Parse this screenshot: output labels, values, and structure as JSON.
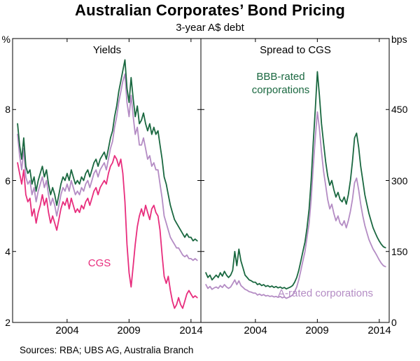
{
  "chart_data": {
    "type": "line",
    "title": "Australian Corporates’ Bond Pricing",
    "subtitle": "3-year A$ debt",
    "sources": "Sources:  RBA; UBS AG, Australia Branch",
    "x_min": 1999.6,
    "x_max": 2014.8,
    "x_start": 2000.0,
    "x_step": 0.16667,
    "x_tick_values": [
      2004,
      2009,
      2014
    ],
    "x_tick_labels": [
      "2004",
      "2009",
      "2014"
    ],
    "frame_color": "#000000",
    "panels": [
      {
        "title": "Yields",
        "unit": "%",
        "y_min": 2,
        "y_max": 10,
        "y_ticks": [
          2,
          4,
          6,
          8
        ],
        "series": [
          {
            "name": "A-rated corporations",
            "color": "#b48cc4",
            "values": [
              7.3,
              6.7,
              6.3,
              6.9,
              6.1,
              5.9,
              6.0,
              5.6,
              5.8,
              5.4,
              5.7,
              5.9,
              6.1,
              5.8,
              6.0,
              5.6,
              5.3,
              5.5,
              5.3,
              5.0,
              5.3,
              5.6,
              5.8,
              5.7,
              5.9,
              5.7,
              6.0,
              5.8,
              5.6,
              5.7,
              5.6,
              5.8,
              5.7,
              5.9,
              6.0,
              5.8,
              6.0,
              6.2,
              6.3,
              6.1,
              6.3,
              6.4,
              6.5,
              6.3,
              6.6,
              6.9,
              7.1,
              7.5,
              7.8,
              8.2,
              8.5,
              8.8,
              9.0,
              8.2,
              7.8,
              8.4,
              7.8,
              7.3,
              7.5,
              7.0,
              7.0,
              7.2,
              6.9,
              6.6,
              6.7,
              6.4,
              6.5,
              6.3,
              6.3,
              5.9,
              5.5,
              5.0,
              4.8,
              4.6,
              4.4,
              4.3,
              4.2,
              4.1,
              4.1,
              4.0,
              3.9,
              3.85,
              3.9,
              3.8,
              3.8,
              3.75,
              3.8,
              3.75
            ]
          },
          {
            "name": "BBB-rated corporations",
            "color": "#1a6840",
            "values": [
              7.6,
              7.0,
              6.6,
              7.2,
              6.4,
              6.2,
              6.3,
              5.9,
              6.1,
              5.7,
              6.0,
              6.2,
              6.4,
              6.1,
              6.3,
              5.9,
              5.6,
              5.8,
              5.6,
              5.3,
              5.6,
              5.9,
              6.1,
              6.0,
              6.2,
              6.0,
              6.3,
              6.1,
              5.9,
              6.0,
              5.9,
              6.1,
              6.0,
              6.2,
              6.3,
              6.1,
              6.3,
              6.5,
              6.6,
              6.4,
              6.6,
              6.7,
              6.8,
              6.6,
              6.9,
              7.2,
              7.4,
              7.8,
              8.1,
              8.5,
              8.8,
              9.1,
              9.4,
              8.6,
              8.2,
              8.9,
              8.3,
              7.8,
              8.1,
              7.6,
              7.7,
              7.9,
              7.6,
              7.4,
              7.6,
              7.3,
              7.5,
              7.3,
              7.4,
              7.0,
              6.6,
              6.1,
              5.9,
              5.6,
              5.3,
              5.1,
              4.9,
              4.8,
              4.7,
              4.6,
              4.5,
              4.4,
              4.5,
              4.4,
              4.4,
              4.3,
              4.35,
              4.3
            ]
          },
          {
            "name": "CGS",
            "color": "#e82d7d",
            "values": [
              6.5,
              6.2,
              5.9,
              6.3,
              5.6,
              5.4,
              5.5,
              5.0,
              5.2,
              4.8,
              5.1,
              5.3,
              5.6,
              5.3,
              5.5,
              5.1,
              4.8,
              5.0,
              4.8,
              4.6,
              4.9,
              5.2,
              5.4,
              5.3,
              5.5,
              5.2,
              5.5,
              5.3,
              5.1,
              5.2,
              5.1,
              5.3,
              5.2,
              5.4,
              5.5,
              5.3,
              5.5,
              5.7,
              5.8,
              5.6,
              5.8,
              5.9,
              6.0,
              5.9,
              6.2,
              6.4,
              6.5,
              6.7,
              6.6,
              6.4,
              6.6,
              6.2,
              5.4,
              4.2,
              3.4,
              3.0,
              3.6,
              4.2,
              4.7,
              5.0,
              5.2,
              5.0,
              5.3,
              5.1,
              4.9,
              5.2,
              5.3,
              5.1,
              5.0,
              4.6,
              3.9,
              3.3,
              3.1,
              3.3,
              2.9,
              2.6,
              2.4,
              2.5,
              2.7,
              2.5,
              2.4,
              2.6,
              2.8,
              2.9,
              2.8,
              2.7,
              2.75,
              2.7
            ]
          }
        ]
      },
      {
        "title": "Spread to CGS",
        "unit": "bps",
        "y_min": 0,
        "y_max": 600,
        "y_ticks": [
          0,
          150,
          300,
          450
        ],
        "series": [
          {
            "name": "A-rated corporations",
            "color": "#b48cc4",
            "values": [
              80,
              72,
              76,
              70,
              73,
              75,
              72,
              78,
              74,
              80,
              75,
              72,
              75,
              82,
              90,
              80,
              88,
              78,
              74,
              70,
              68,
              65,
              64,
              62,
              62,
              58,
              60,
              57,
              59,
              56,
              57,
              55,
              56,
              54,
              55,
              53,
              55,
              52,
              54,
              51,
              53,
              55,
              58,
              65,
              75,
              90,
              110,
              130,
              150,
              180,
              210,
              260,
              330,
              390,
              445,
              410,
              360,
              320,
              290,
              260,
              240,
              250,
              230,
              215,
              225,
              210,
              205,
              215,
              200,
              215,
              235,
              260,
              295,
              305,
              280,
              250,
              225,
              205,
              190,
              175,
              165,
              155,
              148,
              140,
              132,
              125,
              120,
              118
            ]
          },
          {
            "name": "BBB-rated corporations",
            "color": "#1a6840",
            "values": [
              105,
              95,
              100,
              90,
              95,
              100,
              95,
              105,
              98,
              108,
              100,
              95,
              100,
              110,
              150,
              120,
              155,
              130,
              115,
              100,
              95,
              90,
              88,
              85,
              85,
              80,
              82,
              78,
              80,
              76,
              78,
              75,
              77,
              74,
              76,
              73,
              75,
              72,
              74,
              71,
              73,
              75,
              78,
              85,
              95,
              110,
              130,
              150,
              170,
              200,
              240,
              300,
              380,
              450,
              530,
              480,
              420,
              380,
              340,
              310,
              290,
              300,
              280,
              265,
              275,
              260,
              255,
              265,
              250,
              270,
              300,
              340,
              390,
              400,
              370,
              330,
              300,
              270,
              250,
              230,
              215,
              200,
              190,
              180,
              172,
              165,
              160,
              158
            ]
          }
        ]
      }
    ]
  }
}
